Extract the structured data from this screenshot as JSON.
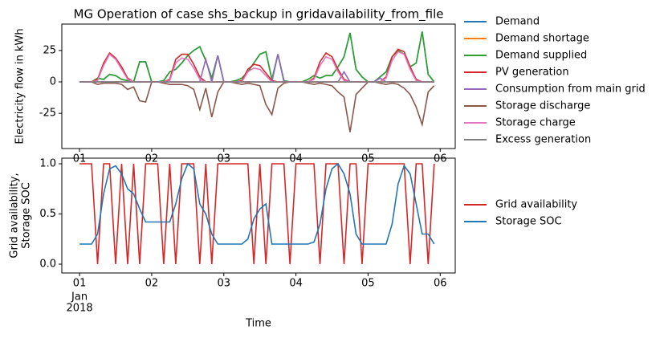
{
  "chart_data": [
    {
      "type": "line",
      "title": "MG Operation of case shs_backup in gridavailability_from_file",
      "ylabel": "Electricity flow in kWh",
      "x": [
        0,
        2,
        4,
        6,
        8,
        10,
        12,
        14,
        16,
        18,
        20,
        22,
        24,
        26,
        28,
        30,
        32,
        34,
        36,
        38,
        40,
        42,
        44,
        46,
        48,
        50,
        52,
        54,
        56,
        58,
        60,
        62,
        64,
        66,
        68,
        70,
        72,
        74,
        76,
        78,
        80,
        82,
        84,
        86,
        88,
        90,
        92,
        94,
        96,
        98,
        100,
        102,
        104,
        106,
        108,
        110,
        112,
        114,
        116,
        118
      ],
      "xlim": [
        -5.9,
        125
      ],
      "xticks": [
        {
          "value": 0,
          "label": "01"
        },
        {
          "value": 24,
          "label": "02"
        },
        {
          "value": 48,
          "label": "03"
        },
        {
          "value": 72,
          "label": "04"
        },
        {
          "value": 96,
          "label": "05"
        },
        {
          "value": 120,
          "label": "06"
        }
      ],
      "ylim": [
        -53,
        46
      ],
      "yticks": [
        -25,
        0,
        25
      ],
      "grid": false,
      "legend": "outside right",
      "series": [
        {
          "name": "Demand",
          "color": "#1f77b4",
          "values": [
            0,
            0,
            0,
            3,
            2,
            6,
            5,
            2,
            1,
            0,
            16,
            16,
            0,
            0,
            1,
            8,
            10,
            15,
            21,
            25,
            28,
            17,
            3,
            21,
            0,
            0,
            1,
            3,
            8,
            15,
            22,
            24,
            2,
            22,
            1,
            0,
            0,
            0,
            2,
            5,
            3,
            5,
            5,
            12,
            20,
            39,
            10,
            4,
            0,
            0,
            4,
            8,
            20,
            25,
            22,
            12,
            15,
            40,
            6,
            0
          ]
        },
        {
          "name": "Demand shortage",
          "color": "#ff7f0e",
          "values": [
            0,
            0,
            0,
            0,
            0,
            0,
            0,
            0,
            0,
            0,
            0,
            0,
            0,
            0,
            0,
            0,
            0,
            0,
            0,
            0,
            0,
            0,
            0,
            0,
            0,
            0,
            0,
            0,
            0,
            0,
            0,
            0,
            0,
            0,
            0,
            0,
            0,
            0,
            0,
            0,
            0,
            0,
            0,
            0,
            0,
            0,
            0,
            0,
            0,
            0,
            0,
            0,
            0,
            0,
            0,
            0,
            0,
            0,
            0,
            0
          ]
        },
        {
          "name": "Demand supplied",
          "color": "#2ca02c",
          "values": [
            0,
            0,
            0,
            3,
            2,
            6,
            5,
            2,
            1,
            0,
            16,
            16,
            0,
            0,
            1,
            8,
            10,
            15,
            21,
            25,
            28,
            17,
            3,
            21,
            0,
            0,
            1,
            3,
            8,
            15,
            22,
            24,
            2,
            22,
            1,
            0,
            0,
            0,
            2,
            5,
            3,
            5,
            5,
            12,
            20,
            39,
            10,
            4,
            0,
            0,
            4,
            8,
            20,
            25,
            22,
            12,
            15,
            40,
            6,
            0
          ]
        },
        {
          "name": "PV generation",
          "color": "#d62728",
          "values": [
            0,
            0,
            0,
            2,
            15,
            23,
            19,
            12,
            3,
            0,
            0,
            0,
            0,
            0,
            0,
            2,
            18,
            22,
            22,
            14,
            4,
            0,
            0,
            0,
            0,
            0,
            0,
            1,
            10,
            14,
            13,
            7,
            1,
            0,
            0,
            0,
            0,
            0,
            0,
            3,
            16,
            23,
            20,
            10,
            2,
            0,
            0,
            0,
            0,
            0,
            0,
            4,
            20,
            26,
            24,
            12,
            2,
            0,
            0,
            0
          ]
        },
        {
          "name": "Consumption from main grid",
          "color": "#9467bd",
          "values": [
            0,
            0,
            0,
            0,
            0,
            0,
            0,
            0,
            0,
            0,
            0,
            0,
            0,
            0,
            0,
            0,
            0,
            0,
            0,
            0,
            0,
            18,
            0,
            21,
            0,
            0,
            0,
            0,
            0,
            0,
            0,
            0,
            0,
            22,
            0,
            0,
            0,
            0,
            0,
            0,
            0,
            0,
            0,
            0,
            8,
            0,
            0,
            0,
            0,
            0,
            3,
            0,
            0,
            0,
            0,
            0,
            0,
            0,
            0,
            0
          ]
        },
        {
          "name": "Storage discharge",
          "color": "#8c564b",
          "values": [
            0,
            0,
            0,
            -2,
            -1,
            -1,
            -1,
            -2,
            -6,
            -4,
            -15,
            -16,
            0,
            0,
            -1,
            -2,
            -2,
            -2,
            -3,
            -6,
            -22,
            -5,
            -28,
            -8,
            0,
            0,
            -1,
            -2,
            -1,
            -2,
            -3,
            -18,
            -26,
            -5,
            -1,
            0,
            0,
            0,
            -1,
            -2,
            -1,
            -2,
            -3,
            -8,
            -12,
            -40,
            -10,
            -5,
            0,
            0,
            -1,
            -2,
            -1,
            -2,
            -5,
            -10,
            -20,
            -34,
            -8,
            -3
          ]
        },
        {
          "name": "Storage charge",
          "color": "#e377c2",
          "values": [
            0,
            0,
            0,
            1,
            13,
            22,
            18,
            10,
            2,
            0,
            0,
            0,
            0,
            0,
            0,
            1,
            15,
            19,
            18,
            11,
            2,
            0,
            0,
            0,
            0,
            0,
            0,
            0,
            8,
            11,
            10,
            5,
            0,
            0,
            0,
            0,
            0,
            0,
            0,
            2,
            13,
            20,
            18,
            8,
            1,
            0,
            0,
            0,
            0,
            0,
            0,
            3,
            17,
            24,
            22,
            10,
            1,
            0,
            0,
            0
          ]
        },
        {
          "name": "Excess generation",
          "color": "#7f7f7f",
          "values": [
            0,
            0,
            0,
            0,
            0,
            0,
            0,
            0,
            0,
            0,
            0,
            0,
            0,
            0,
            0,
            0,
            0,
            0,
            0,
            0,
            0,
            0,
            0,
            0,
            0,
            0,
            0,
            0,
            0,
            0,
            0,
            0,
            0,
            0,
            0,
            0,
            0,
            0,
            0,
            0,
            0,
            0,
            0,
            0,
            0,
            0,
            0,
            0,
            0,
            0,
            0,
            0,
            0,
            0,
            0,
            0,
            0,
            0,
            0,
            0
          ]
        }
      ]
    },
    {
      "type": "line",
      "ylabel": [
        "Grid availability,",
        "Storage SOC"
      ],
      "xlabel": "Time",
      "date_label": [
        "Jan",
        "2018"
      ],
      "x": [
        0,
        2,
        4,
        6,
        8,
        10,
        12,
        14,
        16,
        18,
        20,
        22,
        24,
        26,
        28,
        30,
        32,
        34,
        36,
        38,
        40,
        42,
        44,
        46,
        48,
        50,
        52,
        54,
        56,
        58,
        60,
        62,
        64,
        66,
        68,
        70,
        72,
        74,
        76,
        78,
        80,
        82,
        84,
        86,
        88,
        90,
        92,
        94,
        96,
        98,
        100,
        102,
        104,
        106,
        108,
        110,
        112,
        114,
        116,
        118
      ],
      "xlim": [
        -5.9,
        125
      ],
      "xticks": [
        {
          "value": 0,
          "label": "01"
        },
        {
          "value": 24,
          "label": "02"
        },
        {
          "value": 48,
          "label": "03"
        },
        {
          "value": 72,
          "label": "04"
        },
        {
          "value": 96,
          "label": "05"
        },
        {
          "value": 120,
          "label": "06"
        }
      ],
      "ylim": [
        -0.088,
        1.056
      ],
      "yticks": [
        {
          "value": 0,
          "label": "0.0"
        },
        {
          "value": 0.5,
          "label": "0.5"
        },
        {
          "value": 1,
          "label": "1.0"
        }
      ],
      "grid": false,
      "legend": "outside right",
      "series": [
        {
          "name": "Grid availability",
          "color": "#d62728",
          "values": [
            1,
            1,
            1,
            0,
            1,
            1,
            0,
            1,
            0,
            1,
            0,
            1,
            1,
            1,
            0,
            1,
            0,
            1,
            1,
            1,
            0,
            1,
            0,
            1,
            1,
            1,
            1,
            1,
            1,
            0,
            1,
            0,
            1,
            1,
            1,
            0,
            1,
            1,
            1,
            1,
            0,
            1,
            1,
            1,
            0,
            1,
            1,
            0,
            1,
            1,
            1,
            1,
            1,
            1,
            1,
            0,
            1,
            1,
            0,
            1
          ]
        },
        {
          "name": "Storage SOC",
          "color": "#1f77b4",
          "values": [
            0.2,
            0.2,
            0.2,
            0.3,
            0.7,
            0.95,
            0.98,
            0.9,
            0.75,
            0.7,
            0.55,
            0.42,
            0.42,
            0.42,
            0.42,
            0.42,
            0.6,
            0.85,
            1.0,
            0.95,
            0.6,
            0.5,
            0.3,
            0.2,
            0.2,
            0.2,
            0.2,
            0.2,
            0.25,
            0.45,
            0.55,
            0.6,
            0.2,
            0.2,
            0.2,
            0.2,
            0.2,
            0.2,
            0.2,
            0.22,
            0.4,
            0.75,
            0.95,
            1.0,
            0.9,
            0.7,
            0.3,
            0.2,
            0.2,
            0.2,
            0.2,
            0.2,
            0.4,
            0.8,
            0.98,
            0.9,
            0.6,
            0.3,
            0.3,
            0.2
          ]
        }
      ]
    }
  ]
}
